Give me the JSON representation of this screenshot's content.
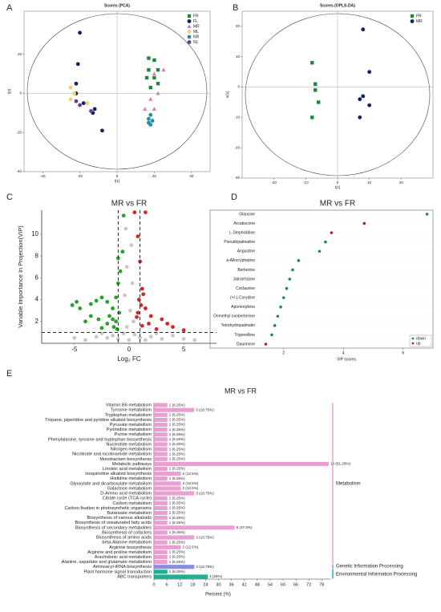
{
  "chart_data": [
    {
      "type": "scatter",
      "panel_label": "A",
      "title": "Scores (PCA)",
      "x_label": "t[1]",
      "y_label": "t[2]",
      "xlim": [
        -50,
        50
      ],
      "xticks": [
        -40,
        -20,
        0,
        20,
        40
      ],
      "ylim": [
        -40,
        42
      ],
      "yticks": [
        -40,
        -20,
        0,
        20
      ],
      "frame": true,
      "ellipse": true,
      "legend": "upper right",
      "series": [
        {
          "name": "FR",
          "color": "#1a8a3a",
          "marker": "square",
          "x": [
            17,
            20,
            17,
            22,
            16,
            20,
            22,
            18
          ],
          "values": [
            18,
            17,
            12,
            12,
            8,
            8,
            5,
            3
          ]
        },
        {
          "name": "FL",
          "color": "#14215e",
          "marker": "circle",
          "x": [
            -20,
            -21,
            -22,
            -22,
            -18,
            -12,
            -13,
            -8
          ],
          "values": [
            31,
            15,
            5,
            0,
            -5,
            -8,
            -10,
            -19
          ]
        },
        {
          "name": "MR",
          "color": "#d080c0",
          "marker": "triangle",
          "x": [
            25,
            20,
            22,
            18,
            15,
            20
          ],
          "values": [
            12,
            10,
            0,
            -3,
            -8,
            -8
          ]
        },
        {
          "name": "ML",
          "color": "#f0d070",
          "marker": "circle",
          "x": [
            -25,
            -23,
            -25,
            -16
          ],
          "values": [
            3,
            0,
            -3,
            -5
          ]
        },
        {
          "name": "NR",
          "color": "#1a90a0",
          "marker": "circle",
          "x": [
            18,
            17,
            19,
            18,
            17
          ],
          "values": [
            -11,
            -13,
            -14,
            -16,
            -15
          ]
        },
        {
          "name": "NL",
          "color": "#6a3d9a",
          "marker": "circle",
          "x": [
            -20,
            -22,
            -14
          ],
          "values": [
            -6,
            -4,
            -9
          ]
        }
      ]
    },
    {
      "type": "scatter",
      "panel_label": "B",
      "title": "Scores (OPLS-DA)",
      "x_label": "t[1]",
      "y_label": "to[1]",
      "xlim": [
        -30,
        30
      ],
      "xticks": [
        -20,
        -10,
        0,
        10,
        20
      ],
      "ylim": [
        -30,
        25
      ],
      "yticks": [
        -30,
        -20,
        -10,
        0,
        10,
        20
      ],
      "frame": true,
      "ellipse": true,
      "legend": "upper right",
      "series": [
        {
          "name": "FR",
          "color": "#1a8a3a",
          "marker": "square",
          "x": [
            -8,
            -7,
            -7,
            -6,
            -8
          ],
          "values": [
            8,
            1,
            -1,
            -5,
            -10
          ]
        },
        {
          "name": "MR",
          "color": "#14215e",
          "marker": "circle",
          "x": [
            8,
            10,
            8,
            7,
            10,
            7
          ],
          "values": [
            19,
            5,
            -3,
            -4,
            -6,
            -10
          ]
        }
      ]
    },
    {
      "type": "scatter",
      "panel_label": "C",
      "title": "MR vs FR",
      "x_label": "Log₂ FC",
      "y_label": "Variable Importance In Projection(VIP)",
      "xlim": [
        -8,
        8
      ],
      "xticks": [
        -5,
        0,
        5
      ],
      "ylim": [
        0,
        12.2
      ],
      "yticks": [
        2,
        4,
        6,
        8,
        10
      ],
      "frame": false,
      "ellipse": false,
      "thresholds": {
        "x": [
          -1,
          1
        ],
        "y": 1
      },
      "series": [
        {
          "color": "#2ca02c",
          "marker": "circle",
          "x": [
            -5.2,
            -4.8,
            -4.5,
            -3.5,
            -3,
            -2.5,
            -2,
            -1.8,
            -1.5,
            -1.2,
            -3.5,
            -2.8,
            -1.5,
            -1.2,
            -1,
            -0.8,
            -1,
            -0.6,
            -0.5,
            -2,
            -4,
            -1.4,
            -2.5,
            -1.1,
            -0.9
          ],
          "values": [
            3.5,
            3.8,
            3.2,
            3.6,
            3.9,
            4.2,
            3.8,
            2.5,
            2.2,
            2,
            2.5,
            2.2,
            3.2,
            4.2,
            5.5,
            6.6,
            7.8,
            8.4,
            11.7,
            1.8,
            2,
            1.5,
            1.4,
            1.3,
            2.8
          ]
        },
        {
          "color": "#d62728",
          "marker": "circle",
          "x": [
            0.5,
            1.5,
            0.8,
            1,
            1.2,
            1.3,
            0.9,
            1.5,
            2,
            3,
            4,
            2.5,
            1.2,
            0.7,
            0.8,
            3.5,
            5,
            1.8,
            1.1
          ],
          "values": [
            12,
            12,
            9.8,
            7.5,
            5,
            4.5,
            4,
            3.2,
            2.5,
            2.2,
            1.5,
            1.3,
            1.6,
            2.4,
            2.8,
            1.8,
            1.2,
            1.8,
            3.5
          ]
        },
        {
          "color": "#c8c8c8",
          "marker": "circle",
          "x": [
            -0.3,
            0.2,
            -0.2,
            0.3,
            -0.4,
            0.1,
            0.4,
            -0.2,
            -3,
            -2,
            -1,
            0,
            1,
            2,
            3,
            -4,
            4,
            5,
            -5,
            0.5,
            -0.5,
            1.5,
            -1.5,
            6,
            2.5,
            -2.5
          ],
          "values": [
            10.5,
            9,
            7,
            5.5,
            4.4,
            3,
            2,
            1.5,
            0.6,
            0.5,
            0.4,
            0.3,
            0.5,
            0.6,
            0.4,
            0.3,
            0.7,
            0.4,
            0.5,
            0.8,
            0.9,
            0.3,
            0.7,
            0.3,
            0.9,
            0.9
          ]
        }
      ]
    },
    {
      "type": "dot",
      "panel_label": "D",
      "title": "MR vs FR",
      "x_label": "VIP scores",
      "xlim": [
        1.2,
        7
      ],
      "xticks": [
        2,
        4,
        6
      ],
      "legend": "lower right",
      "categories": [
        "Glaucine",
        "Arcabucone",
        "L-Stepholidine",
        "Pseudopalmatine",
        "Angustine",
        "a-Allocryptopine",
        "Berberine",
        "Jatrorrhizine",
        "Coclaurine",
        "(+/-)-Corydine",
        "Apomorphine",
        "Demethyl oxoberberine",
        "Tetrahydropalmatin",
        "Trigonelline",
        "Daurinone"
      ],
      "series": [
        {
          "name": "down",
          "color": "#1a8a5a",
          "values": [
            6.8,
            null,
            null,
            3.4,
            3.2,
            2.5,
            2.3,
            2.2,
            2.1,
            2.0,
            1.9,
            1.8,
            1.7,
            1.6,
            null
          ]
        },
        {
          "name": "up",
          "color": "#b0203a",
          "values": [
            null,
            4.7,
            3.6,
            null,
            null,
            null,
            null,
            null,
            null,
            null,
            null,
            null,
            null,
            null,
            1.4
          ]
        }
      ]
    },
    {
      "type": "hbar",
      "panel_label": "E",
      "title": "MR vs FR",
      "x_label": "Percent (%)",
      "xlim": [
        0,
        82
      ],
      "xticks": [
        0,
        6,
        12,
        18,
        24,
        30,
        36,
        42,
        48,
        54,
        60,
        66,
        72,
        78
      ],
      "categories": [
        "Vitamin B6 metabolism",
        "Tyrosine metabolism",
        "Tryptophan metabolism",
        "Tropane, piperidine and pyridine alkaloid biosynthesis",
        "Pyruvate metabolism",
        "Pyrimidine metabolism",
        "Purine metabolism",
        "Phenylalanine, tyrosine and tryptophan biosynthesis",
        "Nucleotide metabolism",
        "Nitrogen metabolism",
        "Nicotinate and nicotinamide metabolism",
        "Monobactam biosynthesis",
        "Metabolic pathways",
        "Linoleic acid metabolism",
        "Isoquinoline alkaloid biosynthesis",
        "Histidine metabolism",
        "Glyoxylate and dicarboxylate metabolism",
        "Galactose metabolism",
        "D-Amino acid metabolism",
        "Citrate cycle (TCA cycle)",
        "Carbon metabolism",
        "Carbon fixation in photosynthetic organisms",
        "Butanoate metabolism",
        "Biosynthesis of various alkaloids",
        "Biosynthesis of unsaturated fatty acids",
        "Biosynthesis of secondary metabolites",
        "Biosynthesis of cofactors",
        "Biosynthesis of amino acids",
        "beta-Alanine metabolism",
        "Arginine biosynthesis",
        "Arginine and proline metabolism",
        "Arachidonic acid metabolism",
        "Alanine, aspartate and glutamate metabolism",
        "Aminoacyl-tRNA biosynthesis",
        "Plant hormone signal transduction",
        "ABC transporters"
      ],
      "series": [
        {
          "name": "Metabolism",
          "color": "#e8a0d0",
          "values": [
            6.25,
            18.75,
            6.25,
            6.25,
            6.25,
            6.25,
            6.25,
            6.25,
            6.25,
            6.25,
            6.25,
            6.25,
            81.25,
            6.25,
            12.5,
            6.25,
            12.5,
            12.5,
            18.75,
            6.25,
            6.25,
            6.25,
            6.25,
            6.25,
            6.25,
            37.5,
            6.25,
            18.75,
            6.25,
            12.5,
            6.25,
            6.25,
            6.25,
            null,
            null,
            null
          ],
          "value_labels": [
            "1 (6.25%)",
            "3 (18.75%)",
            "1 (6.25%)",
            "1 (6.25%)",
            "1 (6.25%)",
            "1 (6.25%)",
            "1 (6.25%)",
            "1 (6.25%)",
            "1 (6.25%)",
            "1 (6.25%)",
            "1 (6.25%)",
            "1 (6.25%)",
            "13 (81.25%)",
            "1 (6.25%)",
            "2 (12.5%)",
            "1 (6.25%)",
            "2 (12.5%)",
            "2 (12.5%)",
            "3 (18.75%)",
            "1 (6.25%)",
            "1 (6.25%)",
            "1 (6.25%)",
            "1 (6.25%)",
            "1 (6.25%)",
            "1 (6.25%)",
            "6 (37.5%)",
            "1 (6.25%)",
            "3 (18.75%)",
            "1 (6.25%)",
            "2 (12.5%)",
            "1 (6.25%)",
            "1 (6.25%)",
            "1 (6.25%)",
            null,
            null,
            null
          ]
        },
        {
          "name": "Genetic Information Processing",
          "color": "#8c8ce0",
          "values": [
            null,
            null,
            null,
            null,
            null,
            null,
            null,
            null,
            null,
            null,
            null,
            null,
            null,
            null,
            null,
            null,
            null,
            null,
            null,
            null,
            null,
            null,
            null,
            null,
            null,
            null,
            null,
            null,
            null,
            null,
            null,
            null,
            null,
            18.75,
            null,
            null
          ],
          "value_labels": [
            null,
            null,
            null,
            null,
            null,
            null,
            null,
            null,
            null,
            null,
            null,
            null,
            null,
            null,
            null,
            null,
            null,
            null,
            null,
            null,
            null,
            null,
            null,
            null,
            null,
            null,
            null,
            null,
            null,
            null,
            null,
            null,
            null,
            "3 (18.75%)",
            null,
            null
          ]
        },
        {
          "name": "Environmental Information Processing",
          "color": "#20b090",
          "values": [
            null,
            null,
            null,
            null,
            null,
            null,
            null,
            null,
            null,
            null,
            null,
            null,
            null,
            null,
            null,
            null,
            null,
            null,
            null,
            null,
            null,
            null,
            null,
            null,
            null,
            null,
            null,
            null,
            null,
            null,
            null,
            null,
            null,
            null,
            6.25,
            25
          ],
          "value_labels": [
            null,
            null,
            null,
            null,
            null,
            null,
            null,
            null,
            null,
            null,
            null,
            null,
            null,
            null,
            null,
            null,
            null,
            null,
            null,
            null,
            null,
            null,
            null,
            null,
            null,
            null,
            null,
            null,
            null,
            null,
            null,
            null,
            null,
            null,
            "1 (6.25%)",
            "4 (25%)"
          ]
        }
      ]
    }
  ]
}
